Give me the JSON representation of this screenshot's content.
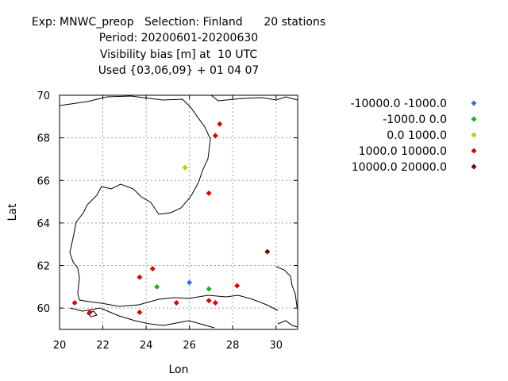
{
  "title": {
    "line1": "Exp: MNWC_preop   Selection: Finland      20 stations",
    "line2": "Period: 20200601-20200630",
    "line3": "Visibility bias [m] at  10 UTC",
    "line4": "Used {03,06,09} + 01 04 07"
  },
  "chart_data": {
    "type": "scatter",
    "title": "Visibility bias [m] at  10 UTC",
    "xlabel": "Lon",
    "ylabel": "Lat",
    "xlim": [
      20,
      31
    ],
    "ylim": [
      59,
      70
    ],
    "xticks": [
      20,
      22,
      24,
      26,
      28,
      30
    ],
    "yticks": [
      60,
      62,
      64,
      66,
      68,
      70
    ],
    "grid": true,
    "legend_position": "right",
    "series": [
      {
        "name": "-10000.0 -1000.0",
        "color": "#3a6fd8",
        "points": [
          [
            26.0,
            61.2
          ]
        ]
      },
      {
        "name": "-1000.0 0.0",
        "color": "#17b317",
        "points": [
          [
            24.5,
            61.0
          ],
          [
            26.9,
            60.9
          ]
        ]
      },
      {
        "name": "0.0 1000.0",
        "color": "#c8c800",
        "points": [
          [
            25.8,
            66.6
          ]
        ]
      },
      {
        "name": "1000.0 10000.0",
        "color": "#e00000",
        "points": [
          [
            27.4,
            68.65
          ],
          [
            27.2,
            68.1
          ],
          [
            26.9,
            65.4
          ],
          [
            24.3,
            61.85
          ],
          [
            23.7,
            61.45
          ],
          [
            28.2,
            61.05
          ],
          [
            20.7,
            60.25
          ],
          [
            21.4,
            59.8
          ],
          [
            23.7,
            59.8
          ],
          [
            25.4,
            60.25
          ],
          [
            26.9,
            60.35
          ],
          [
            27.2,
            60.25
          ]
        ]
      },
      {
        "name": "10000.0 20000.0",
        "color": "#7a0000",
        "points": [
          [
            29.6,
            62.65
          ]
        ]
      }
    ]
  }
}
